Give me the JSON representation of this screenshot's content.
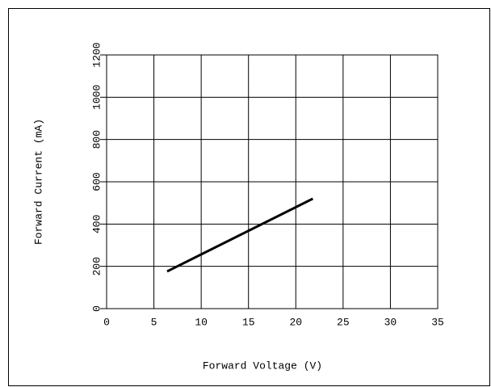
{
  "chart_data": {
    "type": "line",
    "x_label": "Forward Voltage (V)",
    "y_label": "Forward Current (mA)",
    "x": [
      6.4,
      21.8
    ],
    "values": [
      176,
      520
    ],
    "color": "#000000",
    "xlim": [
      0,
      35
    ],
    "xticks": [
      0,
      5,
      10,
      15,
      20,
      25,
      30,
      35
    ],
    "ylim": [
      0,
      1200
    ],
    "yticks": [
      0,
      200,
      400,
      600,
      800,
      1000,
      1200
    ],
    "grid": true
  }
}
